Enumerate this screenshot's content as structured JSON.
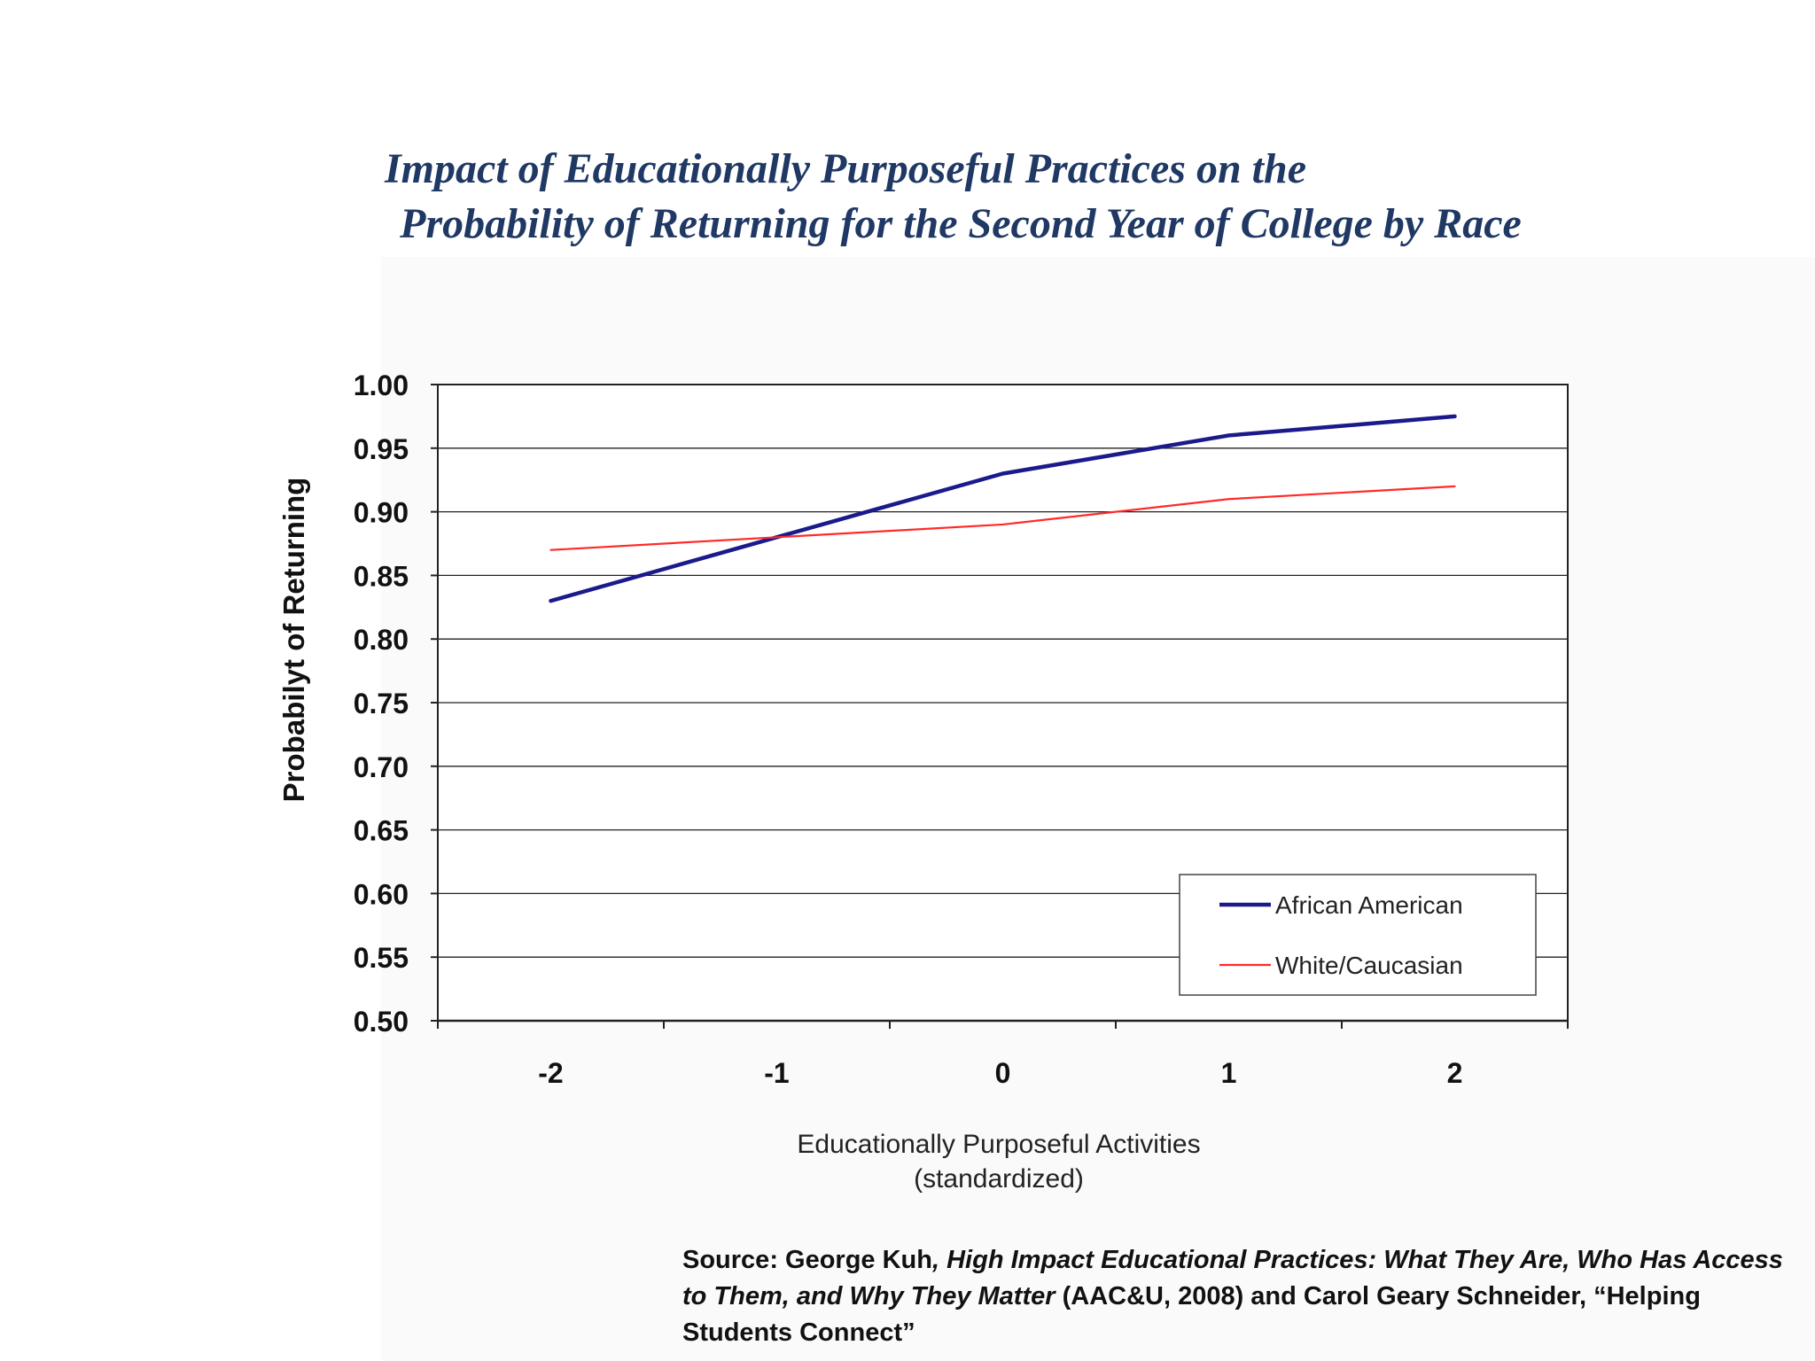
{
  "slide": {
    "title_line1": "Impact of Educationally Purposeful Practices on the",
    "title_line2": "Probability of Returning for the Second Year of College by Race"
  },
  "chart_data": {
    "type": "line",
    "x": [
      -2,
      -1,
      0,
      1,
      2
    ],
    "x_tick_labels": [
      "-2",
      "-1",
      "0",
      "1",
      "2"
    ],
    "series": [
      {
        "name": "African American",
        "color": "#1a1a8c",
        "values": [
          0.83,
          0.88,
          0.93,
          0.96,
          0.975
        ]
      },
      {
        "name": "White/Caucasian",
        "color": "#ff2a2a",
        "values": [
          0.87,
          0.88,
          0.89,
          0.91,
          0.92
        ]
      }
    ],
    "ylim": [
      0.5,
      1.0
    ],
    "y_ticks": [
      0.5,
      0.55,
      0.6,
      0.65,
      0.7,
      0.75,
      0.8,
      0.85,
      0.9,
      0.95,
      1.0
    ],
    "y_tick_labels": [
      "0.50",
      "0.55",
      "0.60",
      "0.65",
      "0.70",
      "0.75",
      "0.80",
      "0.85",
      "0.90",
      "0.95",
      "1.00"
    ],
    "xlabel_line1": "Educationally Purposeful Activities",
    "xlabel_line2": "(standardized)",
    "ylabel": "Probabilyt of Returning",
    "grid": true,
    "legend_position": "bottom-right"
  },
  "source": {
    "prefix": "Source: George Kuh",
    "book_title": ", High Impact Educational Practices: What They Are, Who Has Access to Them, and Why They Matter",
    "rest": " (AAC&U, 2008) and Carol Geary Schneider, “Helping Students Connect”"
  }
}
